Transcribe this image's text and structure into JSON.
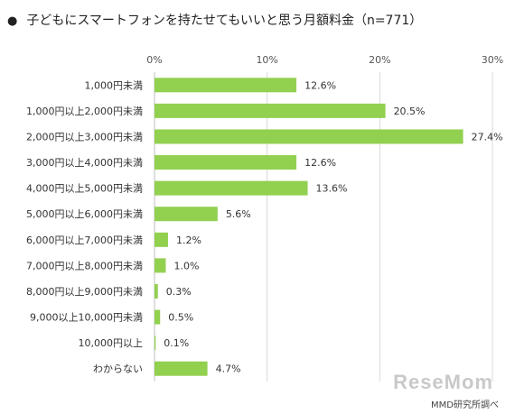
{
  "title": "子どもにスマートフォンを持たせてもいいと思う月額料金（n=771）",
  "title_bullet": "●",
  "source": "MMD研究所調べ",
  "watermark": "ReseMom",
  "colors": {
    "bar": "#92d050",
    "grid": "#d9d9d9",
    "axis": "#bfbfbf"
  },
  "chart_data": {
    "type": "bar",
    "orientation": "horizontal",
    "categories": [
      "1,000円未満",
      "1,000円以上2,000円未満",
      "2,000円以上3,000円未満",
      "3,000円以上4,000円未満",
      "4,000円以上5,000円未満",
      "5,000円以上6,000円未満",
      "6,000円以上7,000円未満",
      "7,000円以上8,000円未満",
      "8,000円以上9,000円未満",
      "9,000以上10,000円未満",
      "10,000円以上",
      "わからない"
    ],
    "values": [
      12.6,
      20.5,
      27.4,
      12.6,
      13.6,
      5.6,
      1.2,
      1.0,
      0.3,
      0.5,
      0.1,
      4.7
    ],
    "value_labels": [
      "12.6%",
      "20.5%",
      "27.4%",
      "12.6%",
      "13.6%",
      "5.6%",
      "1.2%",
      "1.0%",
      "0.3%",
      "0.5%",
      "0.1%",
      "4.7%"
    ],
    "ticks": [
      0,
      10,
      20,
      30
    ],
    "tick_labels": [
      "0%",
      "10%",
      "20%",
      "30%"
    ],
    "xlim": [
      0,
      30
    ],
    "grid": true,
    "legend": "none"
  }
}
